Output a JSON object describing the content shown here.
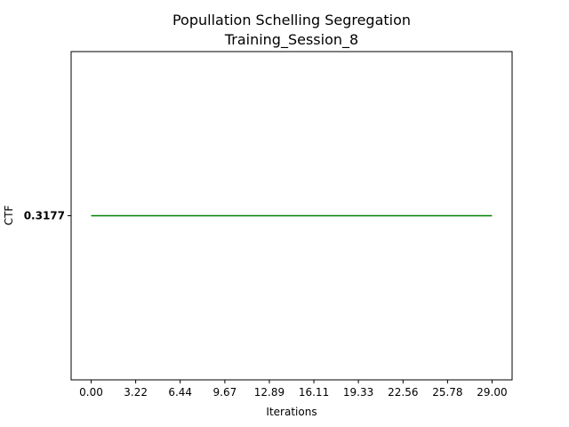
{
  "chart_data": {
    "type": "line",
    "title": "Popullation Schelling Segregation",
    "subtitle": "Training_Session_8",
    "xlabel": "Iterations",
    "ylabel": "CTF",
    "x_ticks": [
      "0.00",
      "3.22",
      "6.44",
      "9.67",
      "12.89",
      "16.11",
      "19.33",
      "22.56",
      "25.78",
      "29.00"
    ],
    "y_ticks": [
      "0.3177"
    ],
    "xlim": [
      -1.45,
      30.45
    ],
    "ylim": [
      0.2677,
      0.3677
    ],
    "series": [
      {
        "color": "#008000",
        "x": [
          0,
          29
        ],
        "y": [
          0.3177,
          0.3177
        ]
      }
    ],
    "grid": false,
    "legend": "none"
  }
}
